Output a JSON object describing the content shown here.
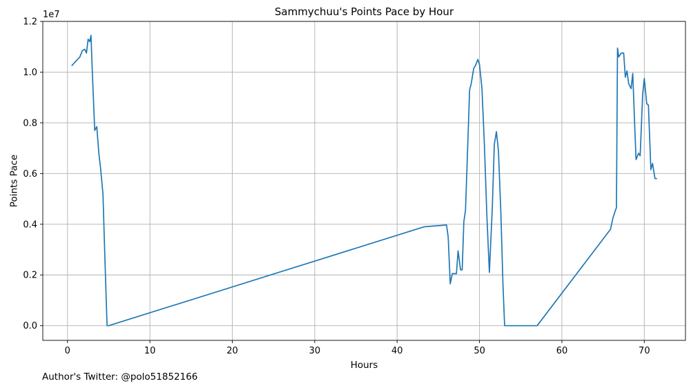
{
  "footnote": "Author's Twitter: @polo51852166",
  "chart_data": {
    "type": "line",
    "title": "Sammychuu's Points Pace by Hour",
    "xlabel": "Hours",
    "ylabel": "Points Pace",
    "y_offset_label": "1e7",
    "y_tick_scale": 10000000,
    "xlim": [
      -3,
      75
    ],
    "ylim": [
      -580000,
      12000000
    ],
    "x_ticks": [
      0,
      10,
      20,
      30,
      40,
      50,
      60,
      70
    ],
    "y_ticks": [
      0,
      2000000,
      4000000,
      6000000,
      8000000,
      10000000,
      12000000
    ],
    "y_tick_labels": [
      "0.0",
      "0.2",
      "0.4",
      "0.6",
      "0.8",
      "1.0",
      "1.2"
    ],
    "grid": true,
    "line_color": "#1f77b4",
    "series": [
      {
        "x": [
          0.5,
          1.5,
          1.8,
          2.1,
          2.3,
          2.5,
          2.7,
          2.85,
          3.0,
          3.3,
          3.55,
          3.8,
          4.0,
          4.3,
          4.6,
          4.8,
          5.0,
          43.3,
          46.0,
          46.2,
          46.45,
          46.7,
          47.2,
          47.4,
          47.7,
          47.9,
          48.1,
          48.3,
          48.5,
          48.8,
          49.0,
          49.3,
          49.5,
          49.8,
          50.0,
          50.3,
          50.6,
          50.9,
          51.2,
          51.55,
          51.8,
          52.05,
          52.3,
          52.6,
          52.85,
          53.05,
          53.3,
          57.0,
          65.9,
          66.2,
          66.5,
          66.62,
          66.75,
          66.9,
          67.2,
          67.5,
          67.7,
          67.9,
          68.1,
          68.4,
          68.6,
          68.85,
          69.0,
          69.3,
          69.5,
          69.8,
          70.0,
          70.3,
          70.5,
          70.8,
          71.0,
          71.3,
          71.55
        ],
        "y": [
          10250000,
          10600000,
          10850000,
          10900000,
          10750000,
          11300000,
          11200000,
          11450000,
          10100000,
          7700000,
          7850000,
          6800000,
          6250000,
          5200000,
          2000000,
          0,
          0,
          3900000,
          3970000,
          3500000,
          1650000,
          2050000,
          2050000,
          2950000,
          2200000,
          2200000,
          4100000,
          4550000,
          6400000,
          9300000,
          9550000,
          10150000,
          10250000,
          10500000,
          10300000,
          9350000,
          7100000,
          4300000,
          2100000,
          4600000,
          7150000,
          7650000,
          6900000,
          4400000,
          1600000,
          0,
          0,
          0,
          3800000,
          4250000,
          4550000,
          4650000,
          10950000,
          10600000,
          10750000,
          10750000,
          9800000,
          10050000,
          9550000,
          9350000,
          9950000,
          7800000,
          6550000,
          6800000,
          6700000,
          9100000,
          9750000,
          8750000,
          8700000,
          6150000,
          6400000,
          5800000,
          5800000
        ]
      }
    ]
  }
}
